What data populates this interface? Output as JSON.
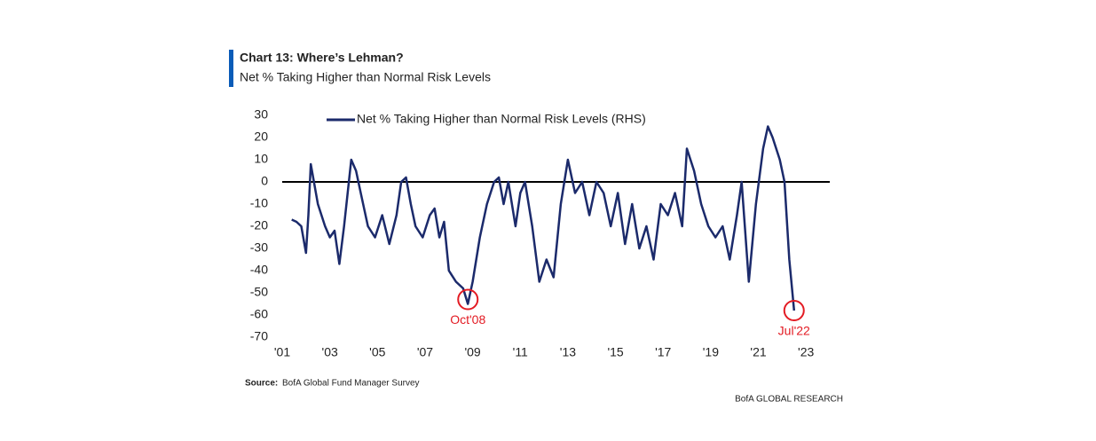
{
  "chart_data": {
    "type": "line",
    "title": "Chart 13: Where’s Lehman?",
    "subtitle": "Net % Taking Higher than Normal Risk Levels",
    "source_label": "Source:",
    "source": "BofA Global Fund Manager Survey",
    "footer": "BofA GLOBAL RESEARCH",
    "legend": "top-left",
    "zero_line": true,
    "series": [
      {
        "name": "Net % Taking Higher than Normal Risk Levels (RHS)",
        "color": "#1b2a6b",
        "x": [
          2001.4,
          2001.6,
          2001.8,
          2002.0,
          2002.1,
          2002.2,
          2002.5,
          2002.8,
          2003.0,
          2003.2,
          2003.4,
          2003.6,
          2003.8,
          2003.9,
          2004.1,
          2004.3,
          2004.6,
          2004.9,
          2005.2,
          2005.5,
          2005.8,
          2006.0,
          2006.2,
          2006.4,
          2006.6,
          2006.9,
          2007.2,
          2007.4,
          2007.6,
          2007.8,
          2008.0,
          2008.3,
          2008.6,
          2008.8,
          2009.0,
          2009.3,
          2009.6,
          2009.9,
          2010.1,
          2010.3,
          2010.5,
          2010.8,
          2011.0,
          2011.2,
          2011.5,
          2011.8,
          2012.1,
          2012.4,
          2012.7,
          2013.0,
          2013.3,
          2013.6,
          2013.9,
          2014.2,
          2014.5,
          2014.8,
          2015.1,
          2015.4,
          2015.7,
          2016.0,
          2016.3,
          2016.6,
          2016.9,
          2017.2,
          2017.5,
          2017.8,
          2018.0,
          2018.3,
          2018.6,
          2018.9,
          2019.2,
          2019.5,
          2019.8,
          2020.1,
          2020.3,
          2020.6,
          2020.9,
          2021.2,
          2021.4,
          2021.6,
          2021.9,
          2022.1,
          2022.3,
          2022.5
        ],
        "values": [
          -17,
          -18,
          -20,
          -32,
          -15,
          8,
          -10,
          -20,
          -25,
          -22,
          -37,
          -20,
          0,
          10,
          5,
          -5,
          -20,
          -25,
          -15,
          -28,
          -15,
          0,
          2,
          -10,
          -20,
          -25,
          -15,
          -12,
          -25,
          -18,
          -40,
          -45,
          -48,
          -55,
          -45,
          -25,
          -10,
          0,
          2,
          -10,
          0,
          -20,
          -5,
          0,
          -20,
          -45,
          -35,
          -43,
          -10,
          10,
          -5,
          0,
          -15,
          0,
          -5,
          -20,
          -5,
          -28,
          -10,
          -30,
          -20,
          -35,
          -10,
          -15,
          -5,
          -20,
          15,
          5,
          -10,
          -20,
          -25,
          -20,
          -35,
          -15,
          0,
          -45,
          -10,
          15,
          25,
          20,
          10,
          0,
          -35,
          -58
        ]
      }
    ],
    "annotations": [
      {
        "text": "Oct'08",
        "x": 2008.8,
        "y": -53,
        "color": "#e31b23"
      },
      {
        "text": "Jul'22",
        "x": 2022.5,
        "y": -58,
        "color": "#e31b23"
      }
    ],
    "xlim": [
      2001,
      2024
    ],
    "ylim": [
      -70,
      30
    ],
    "yticks": [
      30,
      20,
      10,
      0,
      -10,
      -20,
      -30,
      -40,
      -50,
      -60,
      -70
    ],
    "xticks": [
      {
        "value": 2001,
        "label": "'01"
      },
      {
        "value": 2003,
        "label": "'03"
      },
      {
        "value": 2005,
        "label": "'05"
      },
      {
        "value": 2007,
        "label": "'07"
      },
      {
        "value": 2009,
        "label": "'09"
      },
      {
        "value": 2011,
        "label": "'11"
      },
      {
        "value": 2013,
        "label": "'13"
      },
      {
        "value": 2015,
        "label": "'15"
      },
      {
        "value": 2017,
        "label": "'17"
      },
      {
        "value": 2019,
        "label": "'19"
      },
      {
        "value": 2021,
        "label": "'21"
      },
      {
        "value": 2023,
        "label": "'23"
      }
    ]
  }
}
